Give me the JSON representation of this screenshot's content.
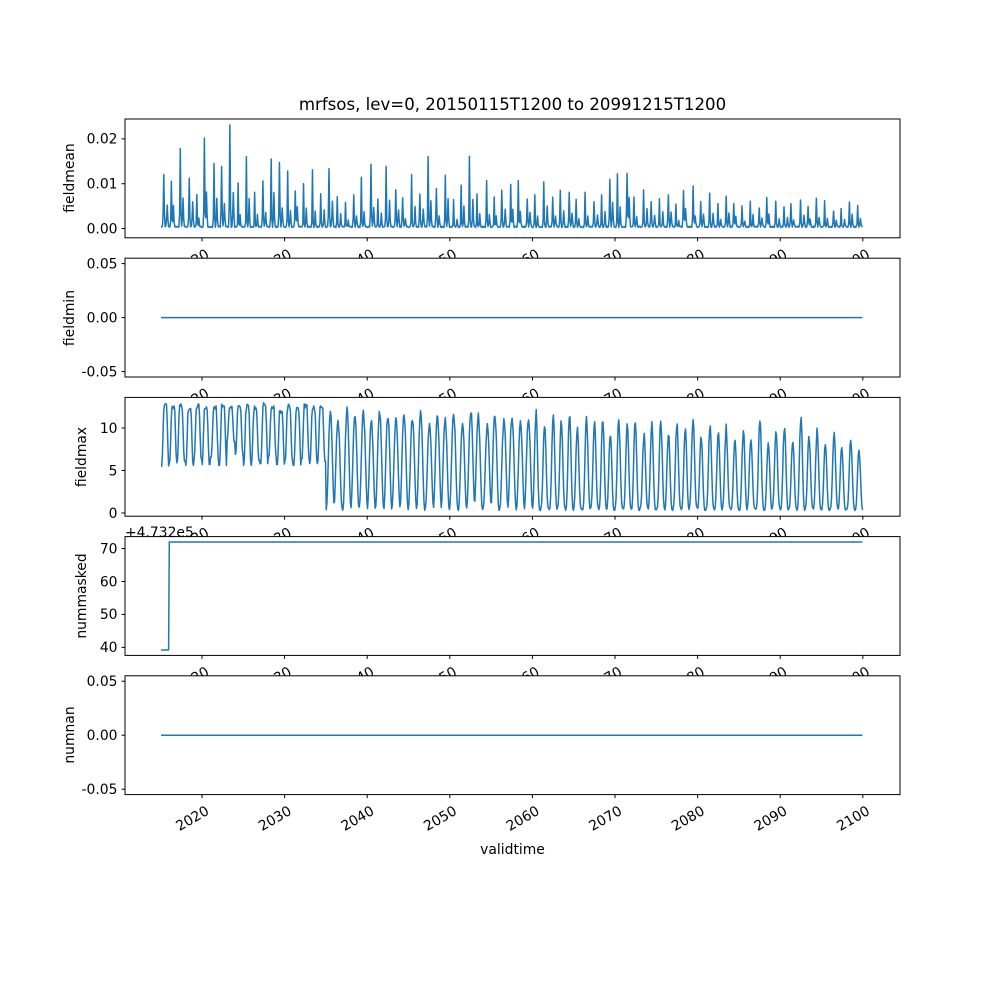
{
  "figure": {
    "title": "mrfsos, lev=0, 20150115T1200 to 20991215T1200",
    "xlabel": "validtime",
    "offset_text": "+4.732e5",
    "background_color": "#ffffff",
    "line_color": "#1f77b4",
    "frame_color": "#000000"
  },
  "xaxis": {
    "label": "validtime",
    "xlim": [
      2010.68,
      2104.5
    ],
    "ticks": [
      2020,
      2030,
      2040,
      2050,
      2060,
      2070,
      2080,
      2090,
      2100
    ],
    "tick_labels": [
      "2020",
      "2030",
      "2040",
      "2050",
      "2060",
      "2070",
      "2080",
      "2090",
      "2100"
    ],
    "tick_label_rotation_deg": 30
  },
  "subplots": [
    {
      "name": "fieldmean",
      "ylabel": "fieldmean",
      "ylim": [
        -0.00207,
        0.02444
      ],
      "yticks": [
        0.0,
        0.01,
        0.02
      ],
      "ytick_labels": [
        "0.00",
        "0.01",
        "0.02"
      ]
    },
    {
      "name": "fieldmin",
      "ylabel": "fieldmin",
      "ylim": [
        -0.055,
        0.055
      ],
      "yticks": [
        -0.05,
        0.0,
        0.05
      ],
      "ytick_labels": [
        "-0.05",
        "0.00",
        "0.05"
      ]
    },
    {
      "name": "fieldmax",
      "ylabel": "fieldmax",
      "ylim": [
        -0.38,
        13.6
      ],
      "yticks": [
        0,
        5,
        10
      ],
      "ytick_labels": [
        "0",
        "5",
        "10"
      ]
    },
    {
      "name": "nummasked",
      "ylabel": "nummasked",
      "ylim": [
        37.56,
        73.64
      ],
      "yticks": [
        40,
        50,
        60,
        70
      ],
      "ytick_labels": [
        "40",
        "50",
        "60",
        "70"
      ]
    },
    {
      "name": "numnan",
      "ylabel": "numnan",
      "ylim": [
        -0.055,
        0.055
      ],
      "yticks": [
        -0.05,
        0.0,
        0.05
      ],
      "ytick_labels": [
        "-0.05",
        "0.00",
        "0.05"
      ]
    }
  ],
  "generation": {
    "seed": 20150115,
    "sampling": "monthly"
  },
  "chart_data": [
    {
      "type": "line",
      "panel": "fieldmean",
      "pattern": "annual_spikes",
      "x_start": 2015.042,
      "x_end": 2099.958,
      "sampling": "monthly",
      "baseline": 0.0004,
      "secondary_peak_fraction_range": [
        0.26,
        0.56
      ],
      "annual_peak_years_start": 2015,
      "annual_peaks": [
        0.0116,
        0.0102,
        0.0176,
        0.0108,
        0.0072,
        0.0199,
        0.0142,
        0.0136,
        0.0228,
        0.0098,
        0.0156,
        0.0076,
        0.0104,
        0.0152,
        0.0144,
        0.0124,
        0.008,
        0.0096,
        0.0128,
        0.0074,
        0.0129,
        0.0066,
        0.0056,
        0.0072,
        0.0112,
        0.0141,
        0.0062,
        0.0134,
        0.0082,
        0.0066,
        0.0116,
        0.0072,
        0.0158,
        0.0086,
        0.0114,
        0.0062,
        0.0092,
        0.0159,
        0.0072,
        0.0102,
        0.0066,
        0.0082,
        0.0096,
        0.0102,
        0.0062,
        0.0072,
        0.0099,
        0.0066,
        0.0082,
        0.0076,
        0.0062,
        0.0076,
        0.0056,
        0.0072,
        0.0106,
        0.0119,
        0.012,
        0.0066,
        0.0082,
        0.0056,
        0.0062,
        0.0072,
        0.0052,
        0.008,
        0.009,
        0.0056,
        0.0076,
        0.0052,
        0.0068,
        0.0052,
        0.0046,
        0.0056,
        0.0042,
        0.0066,
        0.0056,
        0.0046,
        0.0052,
        0.006,
        0.0046,
        0.0064,
        0.0058,
        0.0036,
        0.0042,
        0.0056,
        0.0048
      ],
      "ylim": [
        -0.00207,
        0.02444
      ],
      "yticks": [
        0.0,
        0.01,
        0.02
      ]
    },
    {
      "type": "line",
      "panel": "fieldmin",
      "pattern": "constant",
      "value": 0.0,
      "x_start": 2015.042,
      "x_end": 2099.958,
      "ylim": [
        -0.055,
        0.055
      ],
      "yticks": [
        -0.05,
        0.0,
        0.05
      ]
    },
    {
      "type": "line",
      "panel": "fieldmax",
      "pattern": "annual_wave",
      "x_start": 2015.042,
      "x_end": 2099.958,
      "sampling": "monthly",
      "regime_change_year": 2035,
      "annual_years_start": 2015,
      "annual_min": [
        5.5,
        5.9,
        6.1,
        5.6,
        6.3,
        5.7,
        6.6,
        5.6,
        8.4,
        6.9,
        5.6,
        6.2,
        5.8,
        6.7,
        5.7,
        6.1,
        5.6,
        6.4,
        5.8,
        6.1,
        0.4,
        0.6,
        0.3,
        0.5,
        0.7,
        0.35,
        0.55,
        0.3,
        0.65,
        0.4,
        0.5,
        0.3,
        0.6,
        0.45,
        0.35,
        0.5,
        0.3,
        0.6,
        0.4,
        0.55,
        0.3,
        0.5,
        0.65,
        0.35,
        0.45,
        0.3,
        0.55,
        0.4,
        0.6,
        0.3,
        0.5,
        0.35,
        0.6,
        0.4,
        0.3,
        0.55,
        0.45,
        0.3,
        0.6,
        0.35,
        0.5,
        0.3,
        0.55,
        0.4,
        0.65,
        0.3,
        0.5,
        0.35,
        0.6,
        0.4,
        0.3,
        0.55,
        0.45,
        0.3,
        0.6,
        0.35,
        0.5,
        0.3,
        0.55,
        0.4,
        0.3,
        0.5,
        0.35,
        0.45,
        0.3
      ],
      "annual_max": [
        12.9,
        12.8,
        13.0,
        12.7,
        12.9,
        12.8,
        12.6,
        12.9,
        12.6,
        12.8,
        12.9,
        12.6,
        13.0,
        12.8,
        12.4,
        12.9,
        12.7,
        13.0,
        12.6,
        12.9,
        12.2,
        11.6,
        12.5,
        11.9,
        12.4,
        11.2,
        12.6,
        12.0,
        11.4,
        12.3,
        11.8,
        12.5,
        11.0,
        12.2,
        11.6,
        12.4,
        11.1,
        12.6,
        11.8,
        10.6,
        12.2,
        11.4,
        12.0,
        10.9,
        11.6,
        12.3,
        10.8,
        11.9,
        11.2,
        12.1,
        10.4,
        11.8,
        10.9,
        11.5,
        9.8,
        11.6,
        10.6,
        11.2,
        9.6,
        10.8,
        11.4,
        9.9,
        11.0,
        10.3,
        11.6,
        9.4,
        10.8,
        9.7,
        10.5,
        8.9,
        10.2,
        9.3,
        11.6,
        8.6,
        9.9,
        10.6,
        8.8,
        11.8,
        9.5,
        10.1,
        8.4,
        9.6,
        8.1,
        9.0,
        7.8
      ],
      "ylim": [
        -0.38,
        13.6
      ],
      "yticks": [
        0,
        5,
        10
      ]
    },
    {
      "type": "line",
      "panel": "nummasked",
      "pattern": "step",
      "offset_text": "+4.732e5",
      "offset_value": 473200,
      "value_before": 473239.2,
      "value_after": 473272.0,
      "display_before": 39.2,
      "display_after": 72.0,
      "step_year": 2016,
      "x_start": 2015.042,
      "x_end": 2099.958,
      "ylim": [
        37.56,
        73.64
      ],
      "yticks": [
        40,
        50,
        60,
        70
      ]
    },
    {
      "type": "line",
      "panel": "numnan",
      "pattern": "constant",
      "value": 0.0,
      "x_start": 2015.042,
      "x_end": 2099.958,
      "ylim": [
        -0.055,
        0.055
      ],
      "yticks": [
        -0.05,
        0.0,
        0.05
      ]
    }
  ]
}
